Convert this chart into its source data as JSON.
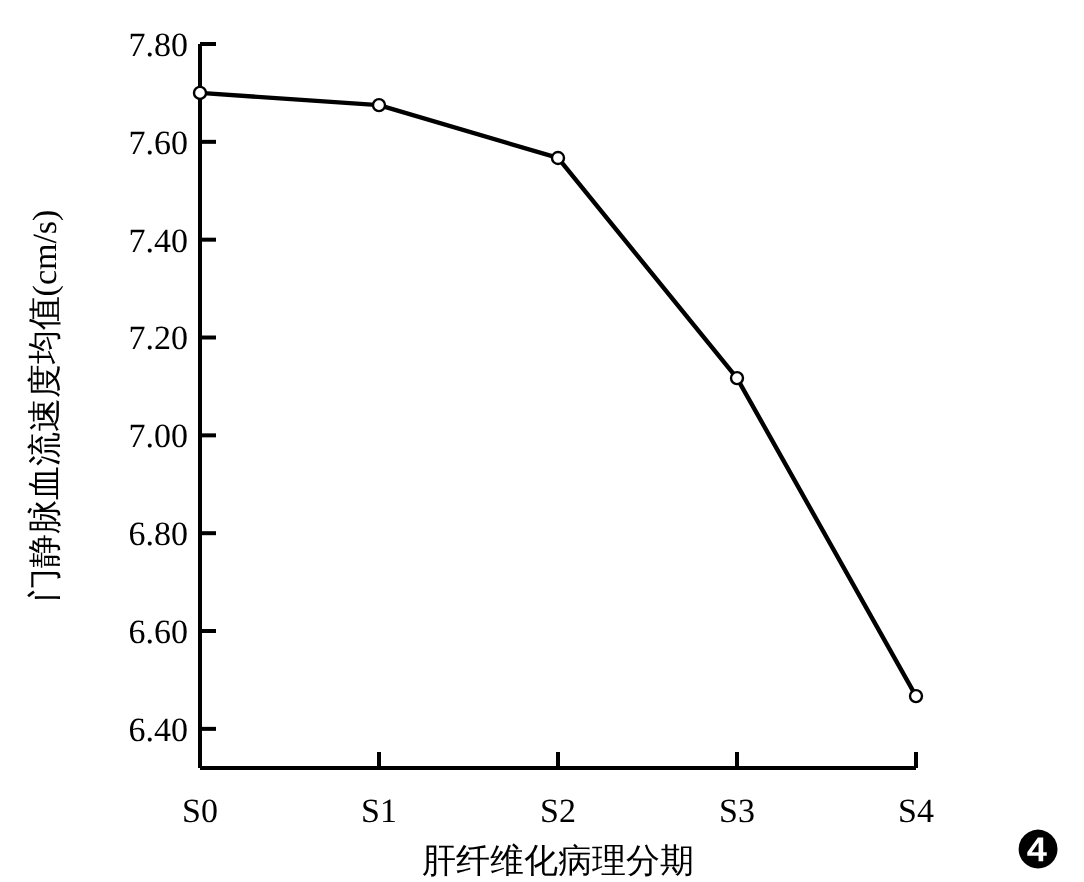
{
  "chart_data": {
    "type": "line",
    "xlabel": "肝纤维化病理分期",
    "ylabel": "门静脉血流速度均值(cm/s)",
    "categories": [
      "S0",
      "S1",
      "S2",
      "S3",
      "S4"
    ],
    "series": [
      {
        "color": "#000000",
        "values": [
          7.7,
          7.675,
          7.567,
          7.117,
          6.467
        ]
      }
    ],
    "ylim": [
      6.32,
      7.8
    ],
    "yticks": [
      {
        "value": 6.4,
        "label": "6.40"
      },
      {
        "value": 6.6,
        "label": "6.60"
      },
      {
        "value": 6.8,
        "label": "6.80"
      },
      {
        "value": 7.0,
        "label": "7.00"
      },
      {
        "value": 7.2,
        "label": "7.20"
      },
      {
        "value": 7.4,
        "label": "7.40"
      },
      {
        "value": 7.6,
        "label": "7.60"
      },
      {
        "value": 7.8,
        "label": "7.80"
      }
    ],
    "marker": "circle",
    "line_style": "solid",
    "grid": false,
    "annotations": [
      "❹"
    ]
  }
}
